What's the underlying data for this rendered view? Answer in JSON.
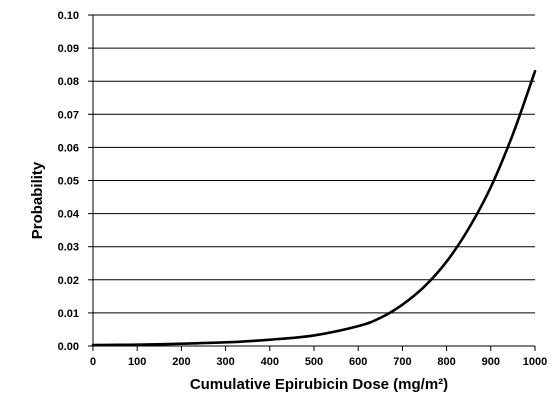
{
  "chart_data": {
    "type": "line",
    "title": "",
    "xlabel": "Cumulative Epirubicin Dose (mg/m²)",
    "ylabel": "Probability",
    "xlim": [
      0,
      1000
    ],
    "ylim": [
      0,
      0.1
    ],
    "x_ticks": [
      "0",
      "100",
      "200",
      "300",
      "400",
      "500",
      "600",
      "700",
      "800",
      "900",
      "1000"
    ],
    "y_ticks": [
      "0.00",
      "0.01",
      "0.02",
      "0.03",
      "0.04",
      "0.05",
      "0.06",
      "0.07",
      "0.08",
      "0.09",
      "0.10"
    ],
    "grid": "horizontal",
    "series": [
      {
        "color": "#000000",
        "x": [
          0,
          100,
          200,
          300,
          400,
          500,
          600,
          650,
          700,
          750,
          800,
          850,
          900,
          950,
          1000
        ],
        "y": [
          0.0003,
          0.0004,
          0.0007,
          0.0011,
          0.0019,
          0.0032,
          0.006,
          0.0085,
          0.0125,
          0.018,
          0.0255,
          0.0355,
          0.048,
          0.064,
          0.083
        ]
      }
    ]
  }
}
